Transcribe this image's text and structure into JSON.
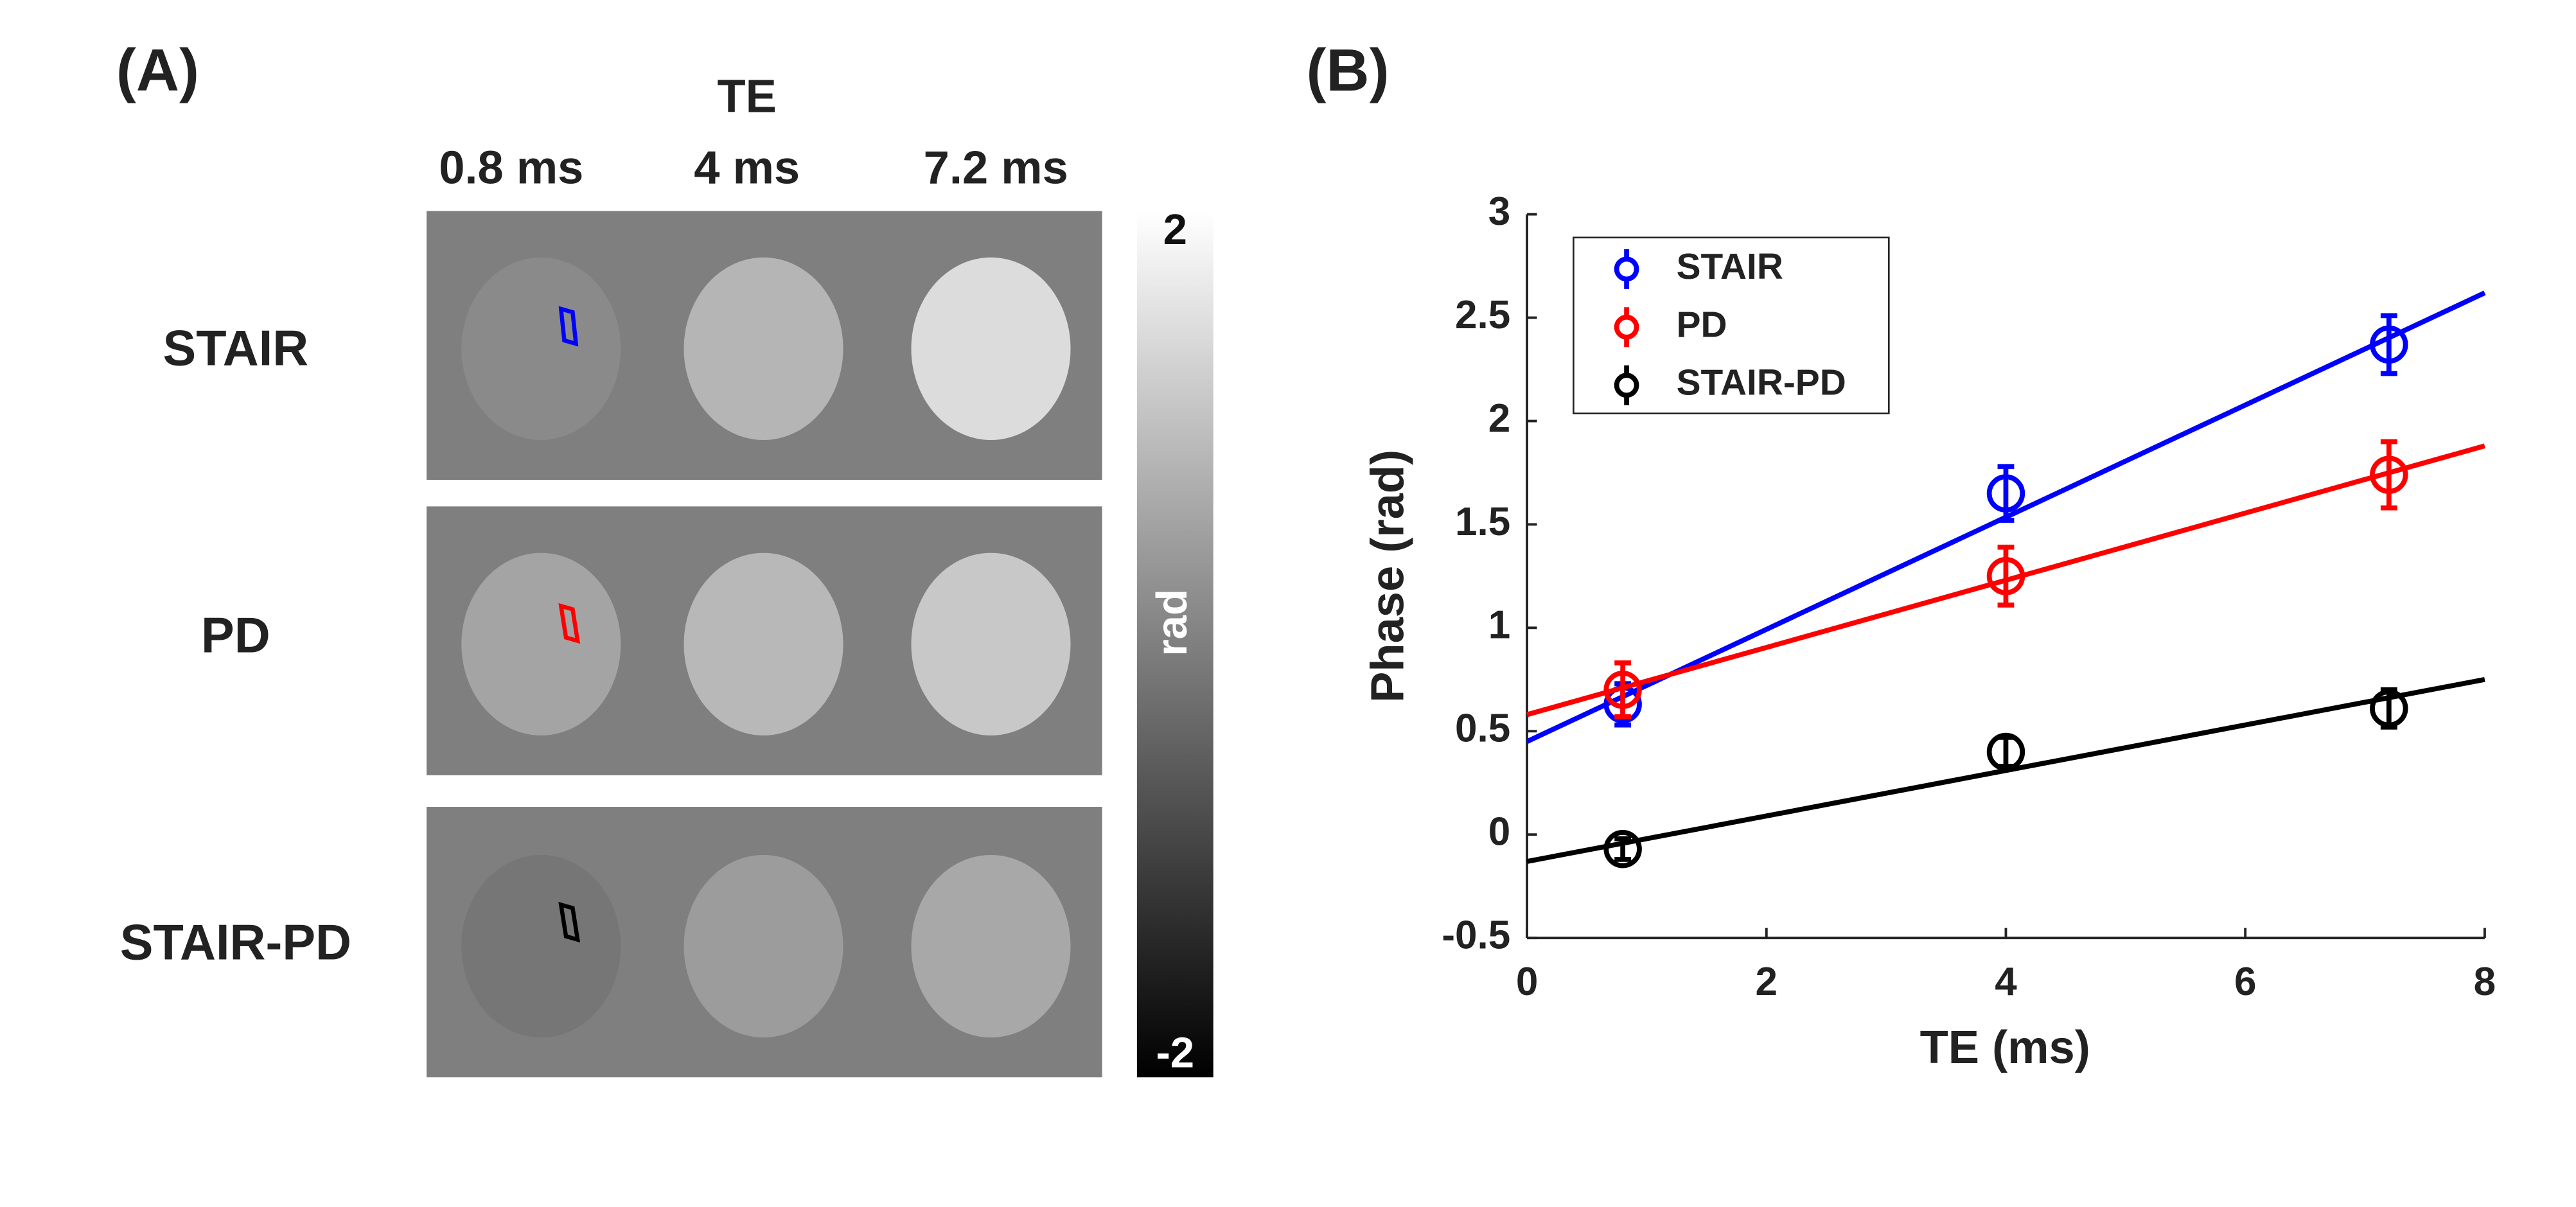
{
  "panel_a": {
    "label": "(A)",
    "column_title": "TE",
    "columns": [
      "0.8 ms",
      "4 ms",
      "7.2 ms"
    ],
    "rows": [
      "STAIR",
      "PD",
      "STAIR-PD"
    ],
    "colorbar": {
      "label": "rad",
      "ticks": [
        2,
        -2
      ]
    }
  },
  "chart_data": {
    "type": "errorbar",
    "panel_label": "(B)",
    "x_label": "TE (ms)",
    "y_label": "Phase (rad)",
    "x": [
      0.8,
      4,
      7.2
    ],
    "series": [
      {
        "name": "STAIR",
        "color": "#0000ff",
        "values": [
          0.63,
          1.65,
          2.37
        ],
        "errors": [
          0.1,
          0.13,
          0.14
        ],
        "fit": {
          "x": [
            0,
            8
          ],
          "values": [
            0.45,
            2.62
          ]
        }
      },
      {
        "name": "PD",
        "color": "#ff0000",
        "values": [
          0.7,
          1.25,
          1.74
        ],
        "errors": [
          0.13,
          0.14,
          0.16
        ],
        "fit": {
          "x": [
            0,
            8
          ],
          "values": [
            0.58,
            1.88
          ]
        }
      },
      {
        "name": "STAIR-PD",
        "color": "#000000",
        "values": [
          -0.07,
          0.4,
          0.61
        ],
        "errors": [
          0.05,
          0.07,
          0.09
        ],
        "fit": {
          "x": [
            0,
            8
          ],
          "values": [
            -0.13,
            0.75
          ]
        }
      }
    ],
    "xlim": [
      0,
      8
    ],
    "xticks": [
      0,
      2,
      4,
      6,
      8
    ],
    "ylim": [
      -0.5,
      3
    ],
    "yticks": [
      -0.5,
      0,
      0.5,
      1,
      1.5,
      2,
      2.5,
      3
    ],
    "legend": "upper left"
  }
}
